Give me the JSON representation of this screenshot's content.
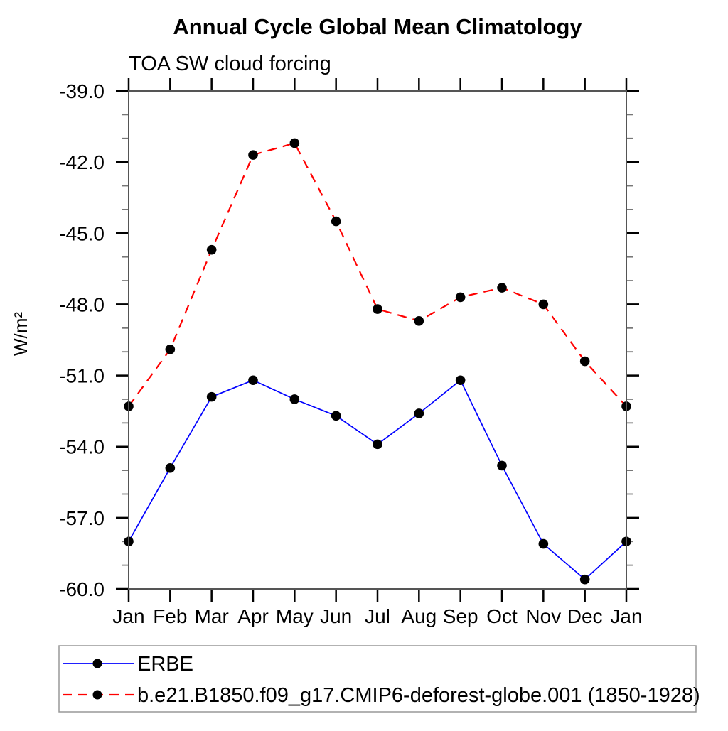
{
  "chart_data": {
    "type": "line",
    "title": "Annual Cycle Global Mean Climatology",
    "subtitle": "TOA SW cloud forcing",
    "ylabel": "W/m²",
    "xlabel": "",
    "categories": [
      "Jan",
      "Feb",
      "Mar",
      "Apr",
      "May",
      "Jun",
      "Jul",
      "Aug",
      "Sep",
      "Oct",
      "Nov",
      "Dec",
      "Jan"
    ],
    "ylim": [
      -60.0,
      -39.0
    ],
    "ytick_major_interval": 3.0,
    "ytick_minor_interval": 1.0,
    "ytick_labels": [
      "-39.0",
      "-42.0",
      "-45.0",
      "-48.0",
      "-51.0",
      "-54.0",
      "-57.0",
      "-60.0"
    ],
    "grid": "off",
    "legend_position": "bottom-left-box",
    "series": [
      {
        "name": "ERBE",
        "color": "#0000ff",
        "line_style": "solid",
        "marker": "filled-circle",
        "marker_color": "#000000",
        "values": [
          -58.0,
          -54.9,
          -51.9,
          -51.2,
          -52.0,
          -52.7,
          -53.9,
          -52.6,
          -51.2,
          -54.8,
          -58.1,
          -59.6,
          -58.0
        ]
      },
      {
        "name": "b.e21.B1850.f09_g17.CMIP6-deforest-globe.001 (1850-1928)",
        "color": "#ff0000",
        "line_style": "dashed",
        "marker": "filled-circle",
        "marker_color": "#000000",
        "values": [
          -52.3,
          -49.9,
          -45.7,
          -41.7,
          -41.2,
          -44.5,
          -48.2,
          -48.7,
          -47.7,
          -47.3,
          -48.0,
          -50.4,
          -52.3
        ]
      }
    ]
  },
  "colors": {
    "frame": "#555555",
    "major_tick": "#000000",
    "minor_tick": "#777777",
    "legend_border": "#999999"
  }
}
